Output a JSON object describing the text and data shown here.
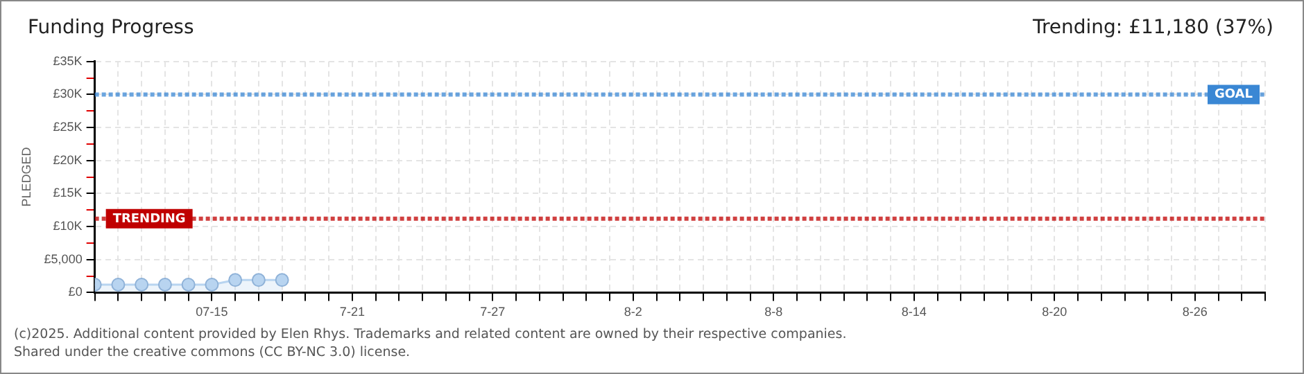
{
  "chart_data": {
    "type": "area",
    "title": "Funding Progress",
    "subtitle": "Trending:  £11,180 (37%)",
    "ylabel": "PLEDGED",
    "x": [
      "2025-07-10",
      "2025-07-11",
      "2025-07-12",
      "2025-07-13",
      "2025-07-14",
      "2025-07-15",
      "2025-07-16",
      "2025-07-17",
      "2025-07-18"
    ],
    "series": [
      {
        "color": "#b8d4f0",
        "values": [
          1200,
          1200,
          1200,
          1200,
          1200,
          1200,
          1900,
          1900,
          1900
        ]
      }
    ],
    "xlim": [
      "2025-07-10",
      "2025-08-29"
    ],
    "xticks": [
      {
        "value": "2025-07-10",
        "label": null
      },
      {
        "value": "2025-07-11",
        "label": null
      },
      {
        "value": "2025-07-12",
        "label": null
      },
      {
        "value": "2025-07-13",
        "label": null
      },
      {
        "value": "2025-07-14",
        "label": null
      },
      {
        "value": "2025-07-15",
        "label": "07-15"
      },
      {
        "value": "2025-07-16",
        "label": null
      },
      {
        "value": "2025-07-17",
        "label": null
      },
      {
        "value": "2025-07-18",
        "label": null
      },
      {
        "value": "2025-07-19",
        "label": null
      },
      {
        "value": "2025-07-20",
        "label": null
      },
      {
        "value": "2025-07-21",
        "label": "7-21"
      },
      {
        "value": "2025-07-22",
        "label": null
      },
      {
        "value": "2025-07-23",
        "label": null
      },
      {
        "value": "2025-07-24",
        "label": null
      },
      {
        "value": "2025-07-25",
        "label": null
      },
      {
        "value": "2025-07-26",
        "label": null
      },
      {
        "value": "2025-07-27",
        "label": "7-27"
      },
      {
        "value": "2025-07-28",
        "label": null
      },
      {
        "value": "2025-07-29",
        "label": null
      },
      {
        "value": "2025-07-30",
        "label": null
      },
      {
        "value": "2025-07-31",
        "label": null
      },
      {
        "value": "2025-08-01",
        "label": null
      },
      {
        "value": "2025-08-02",
        "label": "8-2"
      },
      {
        "value": "2025-08-03",
        "label": null
      },
      {
        "value": "2025-08-04",
        "label": null
      },
      {
        "value": "2025-08-05",
        "label": null
      },
      {
        "value": "2025-08-06",
        "label": null
      },
      {
        "value": "2025-08-07",
        "label": null
      },
      {
        "value": "2025-08-08",
        "label": "8-8"
      },
      {
        "value": "2025-08-09",
        "label": null
      },
      {
        "value": "2025-08-10",
        "label": null
      },
      {
        "value": "2025-08-11",
        "label": null
      },
      {
        "value": "2025-08-12",
        "label": null
      },
      {
        "value": "2025-08-13",
        "label": null
      },
      {
        "value": "2025-08-14",
        "label": "8-14"
      },
      {
        "value": "2025-08-15",
        "label": null
      },
      {
        "value": "2025-08-16",
        "label": null
      },
      {
        "value": "2025-08-17",
        "label": null
      },
      {
        "value": "2025-08-18",
        "label": null
      },
      {
        "value": "2025-08-19",
        "label": null
      },
      {
        "value": "2025-08-20",
        "label": "8-20"
      },
      {
        "value": "2025-08-21",
        "label": null
      },
      {
        "value": "2025-08-22",
        "label": null
      },
      {
        "value": "2025-08-23",
        "label": null
      },
      {
        "value": "2025-08-24",
        "label": null
      },
      {
        "value": "2025-08-25",
        "label": null
      },
      {
        "value": "2025-08-26",
        "label": "8-26"
      },
      {
        "value": "2025-08-27",
        "label": null
      },
      {
        "value": "2025-08-28",
        "label": null
      },
      {
        "value": "2025-08-29",
        "label": null
      }
    ],
    "ylim": [
      0,
      35000
    ],
    "yticks": [
      {
        "value": 0,
        "label": "£0"
      },
      {
        "value": 2500,
        "label": null
      },
      {
        "value": 5000,
        "label": "£5,000"
      },
      {
        "value": 7500,
        "label": null
      },
      {
        "value": 10000,
        "label": "£10K"
      },
      {
        "value": 12500,
        "label": null
      },
      {
        "value": 15000,
        "label": "£15K"
      },
      {
        "value": 17500,
        "label": null
      },
      {
        "value": 20000,
        "label": "£20K"
      },
      {
        "value": 22500,
        "label": null
      },
      {
        "value": 25000,
        "label": "£25K"
      },
      {
        "value": 27500,
        "label": null
      },
      {
        "value": 30000,
        "label": "£30K"
      },
      {
        "value": 32500,
        "label": null
      },
      {
        "value": 35000,
        "label": "£35K"
      }
    ],
    "ref_lines": [
      {
        "axis": "y",
        "value": 30000,
        "label": "GOAL",
        "color": "#3a87d4",
        "line_style": "dotted"
      },
      {
        "axis": "y",
        "value": 11180,
        "label": "TRENDING",
        "color": "#c00000",
        "line_style": "dotted"
      }
    ],
    "grid": true,
    "legend": false,
    "marker": "circle",
    "line_style": "solid",
    "annotations": [
      "(c)2025. Additional content provided by Elen Rhys. Trademarks and related content are owned by their respective companies.",
      "Shared under the creative commons (CC BY-NC 3.0) license."
    ]
  }
}
